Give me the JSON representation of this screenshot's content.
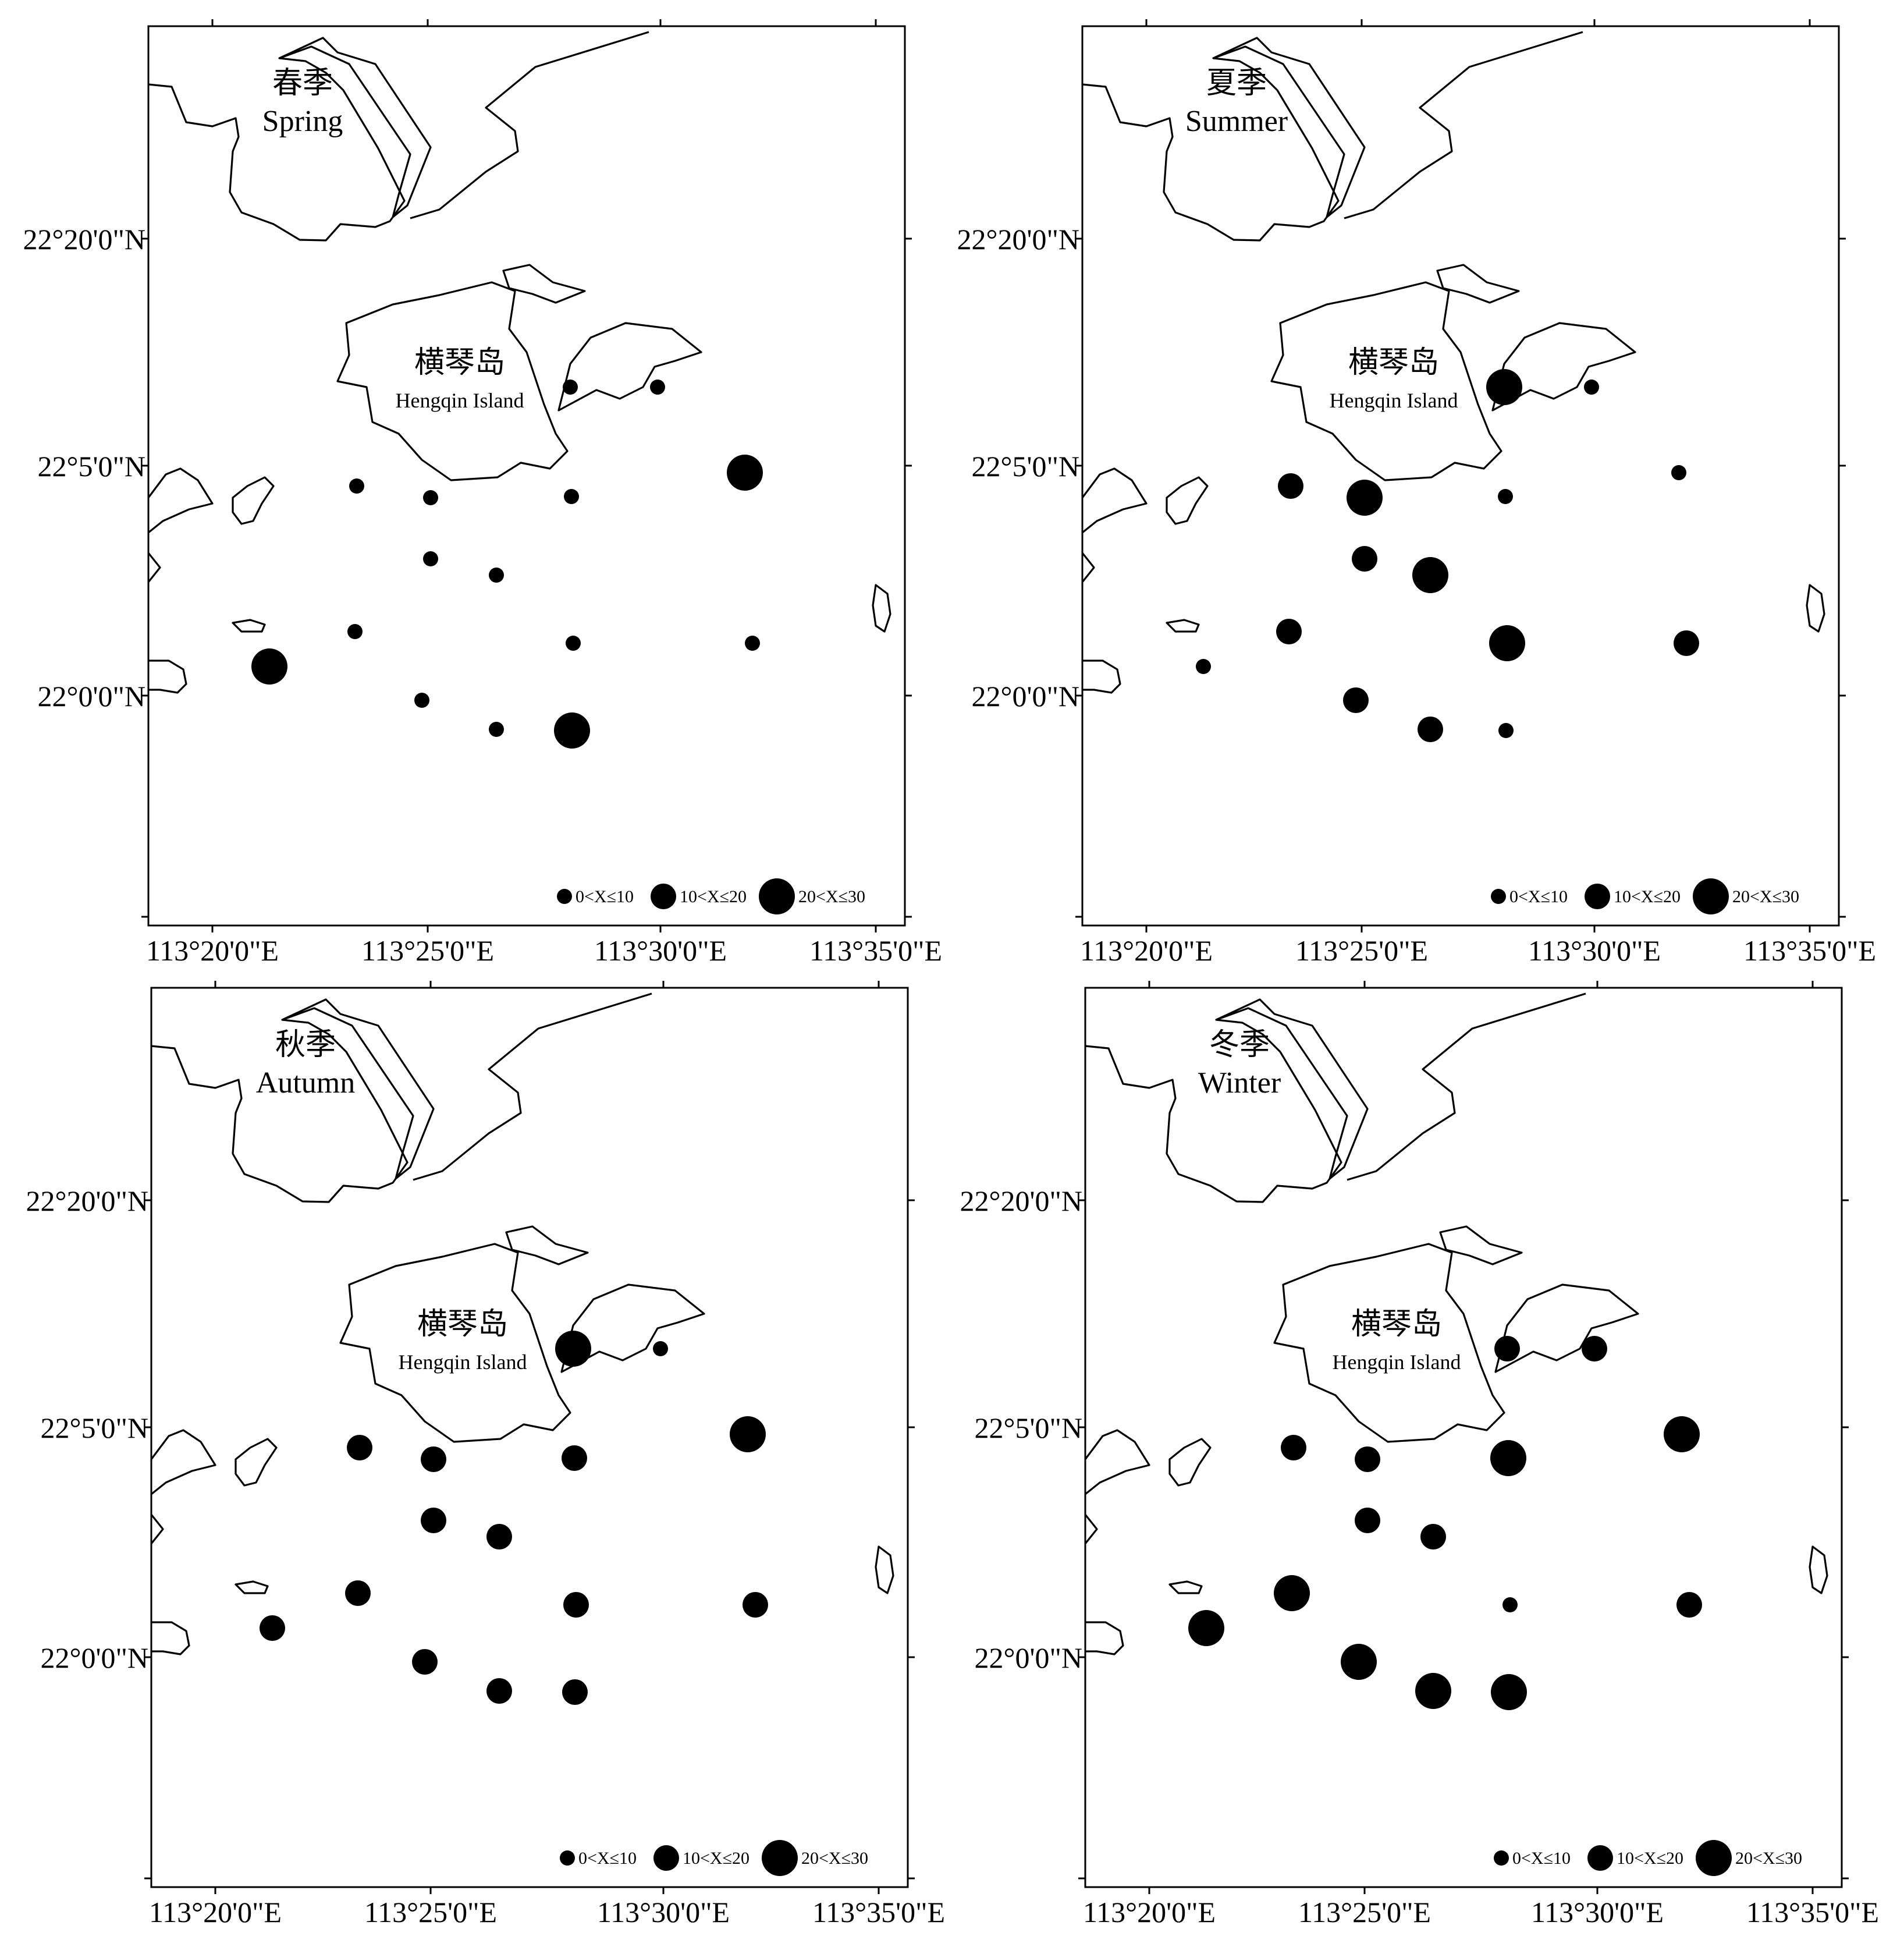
{
  "figure": {
    "lat_labels": [
      "22°20'0\"N",
      "22°5'0\"N",
      "22°0'0\"N"
    ],
    "lon_labels": [
      "113°20'0\"E",
      "113°25'0\"E",
      "113°30'0\"E",
      "113°35'0\"E"
    ],
    "island_label_cn": "横琴岛",
    "island_label_en": "Hengqin Island",
    "legend": [
      {
        "label": "0<X≤10",
        "class": "small"
      },
      {
        "label": "10<X≤20",
        "class": "medium"
      },
      {
        "label": "20<X≤30",
        "class": "large"
      }
    ],
    "colors": {
      "marker": "#000000",
      "coastline": "#000000",
      "background": "#ffffff"
    }
  },
  "chart_data": [
    {
      "type": "scatter",
      "season_cn": "春季",
      "season_en": "Spring",
      "stations_class": [
        "small",
        "small",
        "small",
        "small",
        "small",
        "large",
        "small",
        "small",
        "small",
        "small",
        "small",
        "large",
        "small",
        "small",
        "large"
      ]
    },
    {
      "type": "scatter",
      "season_cn": "夏季",
      "season_en": "Summer",
      "stations_class": [
        "large",
        "small",
        "medium",
        "large",
        "small",
        "small",
        "medium",
        "large",
        "medium",
        "large",
        "medium",
        "small",
        "medium",
        "medium",
        "small"
      ]
    },
    {
      "type": "scatter",
      "season_cn": "秋季",
      "season_en": "Autumn",
      "stations_class": [
        "large",
        "small",
        "medium",
        "medium",
        "medium",
        "large",
        "medium",
        "medium",
        "medium",
        "medium",
        "medium",
        "medium",
        "medium",
        "medium",
        "medium"
      ]
    },
    {
      "type": "scatter",
      "season_cn": "冬季",
      "season_en": "Winter",
      "stations_class": [
        "medium",
        "medium",
        "medium",
        "medium",
        "large",
        "large",
        "medium",
        "medium",
        "large",
        "small",
        "medium",
        "large",
        "large",
        "large",
        "large"
      ]
    }
  ]
}
